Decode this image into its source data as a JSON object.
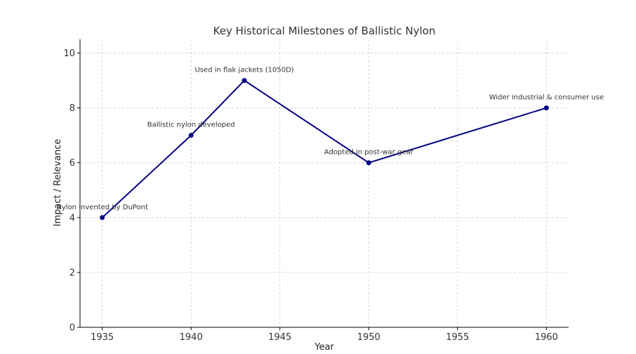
{
  "chart_data": {
    "type": "line",
    "title": "Key Historical Milestones of Ballistic Nylon",
    "xlabel": "Year",
    "ylabel": "Impact / Relevance",
    "xlim": [
      1933.75,
      1961.25
    ],
    "ylim": [
      0,
      10.5
    ],
    "x_ticks": [
      1935,
      1940,
      1945,
      1950,
      1955,
      1960
    ],
    "y_ticks": [
      0,
      2,
      4,
      6,
      8,
      10
    ],
    "grid": true,
    "color": "#000080",
    "series": [
      {
        "x": [
          1935,
          1940,
          1943,
          1950,
          1960
        ],
        "y": [
          4,
          7,
          9,
          6,
          8
        ]
      }
    ],
    "annotations": [
      {
        "x": 1935,
        "y": 4,
        "text": "Nylon invented by DuPont"
      },
      {
        "x": 1940,
        "y": 7,
        "text": "Ballistic nylon developed"
      },
      {
        "x": 1943,
        "y": 9,
        "text": "Used in flak jackets (1050D)"
      },
      {
        "x": 1950,
        "y": 6,
        "text": "Adopted in post-war gear"
      },
      {
        "x": 1960,
        "y": 8,
        "text": "Wider industrial & consumer use"
      }
    ]
  }
}
